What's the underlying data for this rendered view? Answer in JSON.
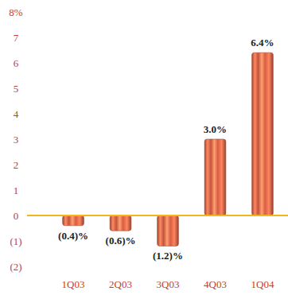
{
  "chart_data": {
    "type": "bar",
    "categories": [
      "1Q03",
      "2Q03",
      "3Q03",
      "4Q03",
      "1Q04"
    ],
    "values": [
      -0.4,
      -0.6,
      -1.2,
      3.0,
      6.4
    ],
    "value_labels": [
      "(0.4)%",
      "(0.6)%",
      "(1.2)%",
      "3.0%",
      "6.4%"
    ],
    "color": "#c2543c",
    "ylim": [
      -2,
      8
    ],
    "yticks": [
      {
        "value": -2,
        "label": "(2)"
      },
      {
        "value": -1,
        "label": "(1)"
      },
      0,
      1,
      2,
      3,
      4,
      5,
      6,
      7,
      {
        "value": 8,
        "label": "8%"
      }
    ],
    "grid": false,
    "data_labels": true
  }
}
